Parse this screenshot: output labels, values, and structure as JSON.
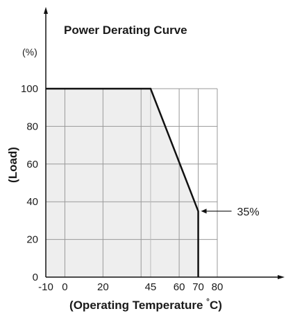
{
  "chart_data": {
    "type": "line",
    "title": "Power Derating Curve",
    "xlabel_main": "(Operating Temperature ",
    "xlabel_degree": "°",
    "xlabel_unit": "C)",
    "ylabel": "(Load)",
    "y_unit_label": "(%)",
    "xlim": [
      -10,
      80
    ],
    "ylim": [
      0,
      100
    ],
    "x_ticks": [
      -10,
      0,
      20,
      45,
      60,
      70,
      80
    ],
    "y_ticks": [
      0,
      20,
      40,
      60,
      80,
      100
    ],
    "x_gridlines": [
      0,
      20,
      40,
      60,
      70,
      80
    ],
    "y_gridlines": [
      20,
      40,
      60,
      80,
      100
    ],
    "grid": true,
    "series": [
      {
        "x": [
          -10,
          45,
          70,
          70
        ],
        "y": [
          100,
          100,
          35,
          0
        ]
      }
    ],
    "annotations": [
      {
        "text": "35%",
        "x": 70,
        "y": 35
      }
    ],
    "colors": {
      "curve": "#111111",
      "fill": "#eeeeee",
      "grid": "#999999",
      "axis": "#111111"
    }
  }
}
